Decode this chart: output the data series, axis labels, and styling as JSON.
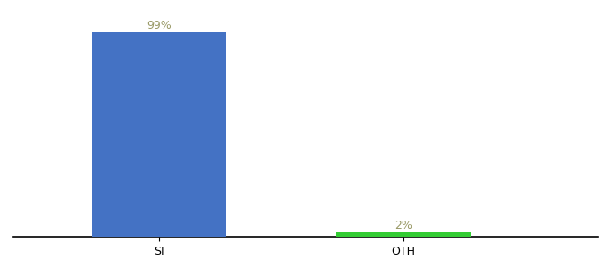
{
  "categories": [
    "SI",
    "OTH"
  ],
  "values": [
    99,
    2
  ],
  "bar_colors": [
    "#4472C4",
    "#33CC33"
  ],
  "label_color": "#999966",
  "labels": [
    "99%",
    "2%"
  ],
  "ylim": [
    0,
    108
  ],
  "background_color": "#ffffff",
  "label_fontsize": 9,
  "tick_fontsize": 9,
  "bar_width": 0.55,
  "x_positions": [
    1,
    2
  ]
}
